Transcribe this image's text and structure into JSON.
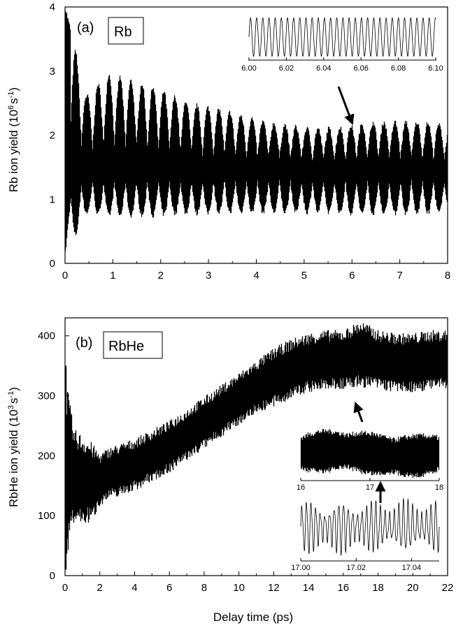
{
  "chart_data": [
    {
      "type": "line",
      "panel_label": "(a)",
      "species_label": "Rb",
      "xlabel": "",
      "ylabel": "Rb ion yield (10^6 s^-1)",
      "ylabel_parts": {
        "main": "Rb ion yield (10",
        "exp1": "6",
        "mid": "s",
        "exp2": "-1",
        "end": ")"
      },
      "xlim": [
        0,
        8
      ],
      "ylim": [
        0,
        4
      ],
      "x_ticks": [
        "0",
        "1",
        "2",
        "3",
        "4",
        "5",
        "6",
        "7",
        "8"
      ],
      "y_ticks": [
        "0",
        "1",
        "2",
        "3",
        "4"
      ],
      "series": [
        {
          "x": [
            0.0,
            0.45,
            0.9,
            1.37,
            1.85,
            2.3,
            2.8,
            3.25,
            3.7,
            4.2,
            4.65,
            5.1,
            5.6,
            6.05,
            6.5,
            7.0,
            7.45,
            7.9
          ],
          "upper_envelope": [
            4.0,
            2.6,
            2.95,
            2.85,
            2.75,
            2.6,
            2.45,
            2.4,
            2.3,
            2.2,
            2.15,
            2.1,
            2.1,
            2.15,
            2.2,
            2.2,
            2.2,
            2.15
          ],
          "lower_envelope": [
            0.1,
            0.8,
            0.75,
            0.75,
            0.75,
            0.78,
            0.78,
            0.8,
            0.8,
            0.8,
            0.8,
            0.8,
            0.8,
            0.78,
            0.78,
            0.78,
            0.78,
            0.8
          ],
          "node_midline": 1.45
        }
      ],
      "inset": {
        "x_ticks": [
          "6.00",
          "6.02",
          "6.04",
          "6.06",
          "6.08",
          "6.10"
        ],
        "xlim": [
          6.0,
          6.1
        ],
        "period": 0.0033
      }
    },
    {
      "type": "line",
      "panel_label": "(b)",
      "species_label": "RbHe",
      "xlabel": "Delay time (ps)",
      "ylabel": "RbHe ion yield (10^3 s^-1)",
      "ylabel_parts": {
        "main": "RbHe ion yield (10",
        "exp1": "3",
        "mid": "s",
        "exp2": "-1",
        "end": ")"
      },
      "xlim": [
        0,
        22
      ],
      "ylim": [
        0,
        430
      ],
      "x_ticks": [
        "0",
        "2",
        "4",
        "6",
        "8",
        "10",
        "12",
        "14",
        "16",
        "18",
        "20",
        "22"
      ],
      "y_ticks": [
        "0",
        "100",
        "200",
        "300",
        "400"
      ],
      "series": [
        {
          "x": [
            0,
            0.5,
            1,
            1.5,
            2,
            2.5,
            3,
            4,
            5,
            6,
            7,
            8,
            9,
            10,
            11,
            12,
            13,
            14,
            15,
            16,
            17,
            18,
            19,
            20,
            21,
            22
          ],
          "mean": [
            180,
            165,
            160,
            155,
            160,
            170,
            175,
            185,
            200,
            215,
            235,
            255,
            275,
            295,
            315,
            330,
            345,
            355,
            360,
            360,
            370,
            360,
            355,
            355,
            360,
            360
          ],
          "half_width": [
            130,
            65,
            60,
            55,
            35,
            35,
            35,
            35,
            35,
            35,
            35,
            35,
            35,
            35,
            35,
            40,
            40,
            40,
            40,
            40,
            45,
            40,
            40,
            40,
            40,
            40
          ]
        }
      ],
      "inset_top": {
        "x_ticks": [
          "16",
          "17",
          "18"
        ],
        "xlim": [
          16,
          18
        ]
      },
      "inset_bottom": {
        "x_ticks": [
          "17.00",
          "17.02",
          "17.04"
        ],
        "xlim": [
          17.0,
          17.05
        ]
      }
    }
  ]
}
